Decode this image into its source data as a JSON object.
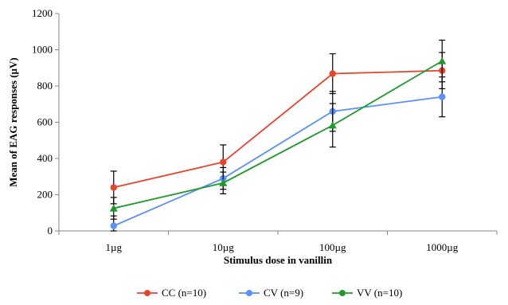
{
  "chart_data": {
    "type": "line",
    "xlabel": "Stimulus dose in vanillin",
    "ylabel": "Mean of EAG responses (µV)",
    "categories": [
      "1µg",
      "10µg",
      "100µg",
      "1000µg"
    ],
    "ylim": [
      0,
      1200
    ],
    "yticks": [
      0,
      200,
      400,
      600,
      800,
      1000,
      1200
    ],
    "grid": false,
    "legend_position": "bottom",
    "series": [
      {
        "name": "CC (n=10)",
        "color": "#e8432b",
        "values": [
          240,
          380,
          868,
          885
        ],
        "errors": [
          90,
          95,
          110,
          100
        ],
        "marker": "circle"
      },
      {
        "name": "CV (n=9)",
        "color": "#5b8ff9",
        "values": [
          28,
          290,
          660,
          740
        ],
        "errors": [
          55,
          60,
          110,
          110
        ],
        "marker": "circle"
      },
      {
        "name": "VV (n=10)",
        "color": "#1e9a2c",
        "values": [
          125,
          265,
          583,
          938
        ],
        "errors": [
          60,
          60,
          120,
          115
        ],
        "marker": "triangle"
      }
    ]
  }
}
